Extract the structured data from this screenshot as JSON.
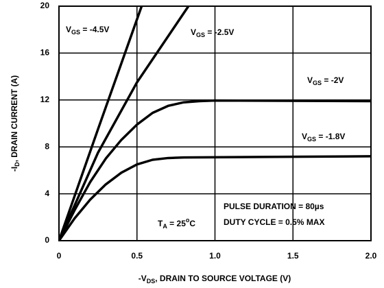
{
  "chart_data": {
    "type": "line",
    "x_label_parts": [
      "-V",
      "DS",
      ", DRAIN TO SOURCE VOLTAGE (V)"
    ],
    "y_label_parts": [
      "-I",
      "D",
      ", DRAIN CURRENT (A)"
    ],
    "xlim": [
      0,
      2.0
    ],
    "xticks": [
      0,
      0.5,
      {
        "value": 1.0,
        "label": "1.0"
      },
      1.5,
      {
        "value": 2.0,
        "label": "2.0"
      }
    ],
    "ylim": [
      0,
      20
    ],
    "yticks": [
      0,
      4,
      8,
      12,
      16,
      20
    ],
    "grid": true,
    "series": [
      {
        "label_parts": [
          "V",
          "GS",
          " = -4.5V"
        ],
        "color": "#000000",
        "x": [
          0,
          0.25,
          0.53
        ],
        "values": [
          0,
          9.5,
          20
        ]
      },
      {
        "label_parts": [
          "V",
          "GS",
          " = -2.5V"
        ],
        "color": "#000000",
        "x": [
          0,
          0.25,
          0.5,
          0.83
        ],
        "values": [
          0,
          7.5,
          13.5,
          20
        ]
      },
      {
        "label_parts": [
          "V",
          "GS",
          " = -2V"
        ],
        "color": "#000000",
        "x": [
          0,
          0.1,
          0.2,
          0.3,
          0.4,
          0.5,
          0.6,
          0.7,
          0.8,
          0.9,
          1.0,
          2.0
        ],
        "values": [
          0,
          2.6,
          5,
          7,
          8.6,
          9.9,
          10.9,
          11.5,
          11.8,
          11.9,
          11.95,
          11.9
        ]
      },
      {
        "label_parts": [
          "V",
          "GS",
          " = -1.8V"
        ],
        "color": "#000000",
        "x": [
          0,
          0.1,
          0.2,
          0.3,
          0.4,
          0.5,
          0.6,
          0.7,
          0.8,
          2.0
        ],
        "values": [
          0,
          1.9,
          3.5,
          4.8,
          5.8,
          6.5,
          6.9,
          7.05,
          7.1,
          7.2
        ]
      }
    ],
    "annotations": {
      "temperature_parts": [
        "T",
        "A",
        " = 25",
        "o",
        "C"
      ],
      "pulse": "PULSE DURATION = 80µs",
      "duty": "DUTY CYCLE = 0.5% MAX"
    }
  }
}
